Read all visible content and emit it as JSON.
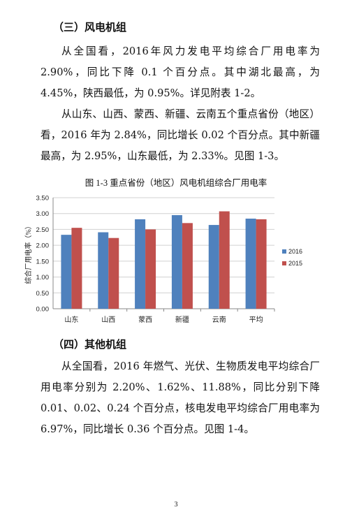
{
  "section3": {
    "heading": "（三）风电机组",
    "p1": "从全国看，2016年风力发电平均综合厂用电率为2.90%，同比下降 0.1 个百分点。其中湖北最高，为 4.45%，陕西最低，为 0.95%。详见附表 1-2。",
    "p2": "从山东、山西、蒙西、新疆、云南五个重点省份（地区）看，2016 年为 2.84%，同比增长 0.02 个百分点。其中新疆最高，为 2.95%，山东最低，为 2.33%。见图 1-3。"
  },
  "chart_data": {
    "type": "bar",
    "title": "图 1-3 重点省份（地区）风电机组综合厂用电率",
    "ylabel": "综合厂用电率（%）",
    "xlabel": "",
    "categories": [
      "山东",
      "山西",
      "蒙西",
      "新疆",
      "云南",
      "平均"
    ],
    "ylim": [
      0,
      3.5
    ],
    "yticks": [
      "0.00",
      "0.50",
      "1.00",
      "1.50",
      "2.00",
      "2.50",
      "3.00",
      "3.50"
    ],
    "series": [
      {
        "name": "2016",
        "color": "#4f81bd",
        "values": [
          2.33,
          2.41,
          2.82,
          2.95,
          2.64,
          2.84
        ]
      },
      {
        "name": "2015",
        "color": "#c0504d",
        "values": [
          2.55,
          2.23,
          2.5,
          2.7,
          3.07,
          2.82
        ]
      }
    ],
    "grid": true,
    "legend": "right"
  },
  "section4": {
    "heading": "（四）其他机组",
    "p1": "从全国看，2016 年燃气、光伏、生物质发电平均综合厂用电率分别为 2.20%、1.62%、11.88%，同比分别下降 0.01、0.02、0.24 个百分点，核电发电平均综合厂用电率为 6.97%，同比增长 0.36 个百分点。见图 1-4。"
  },
  "page_number": "3"
}
